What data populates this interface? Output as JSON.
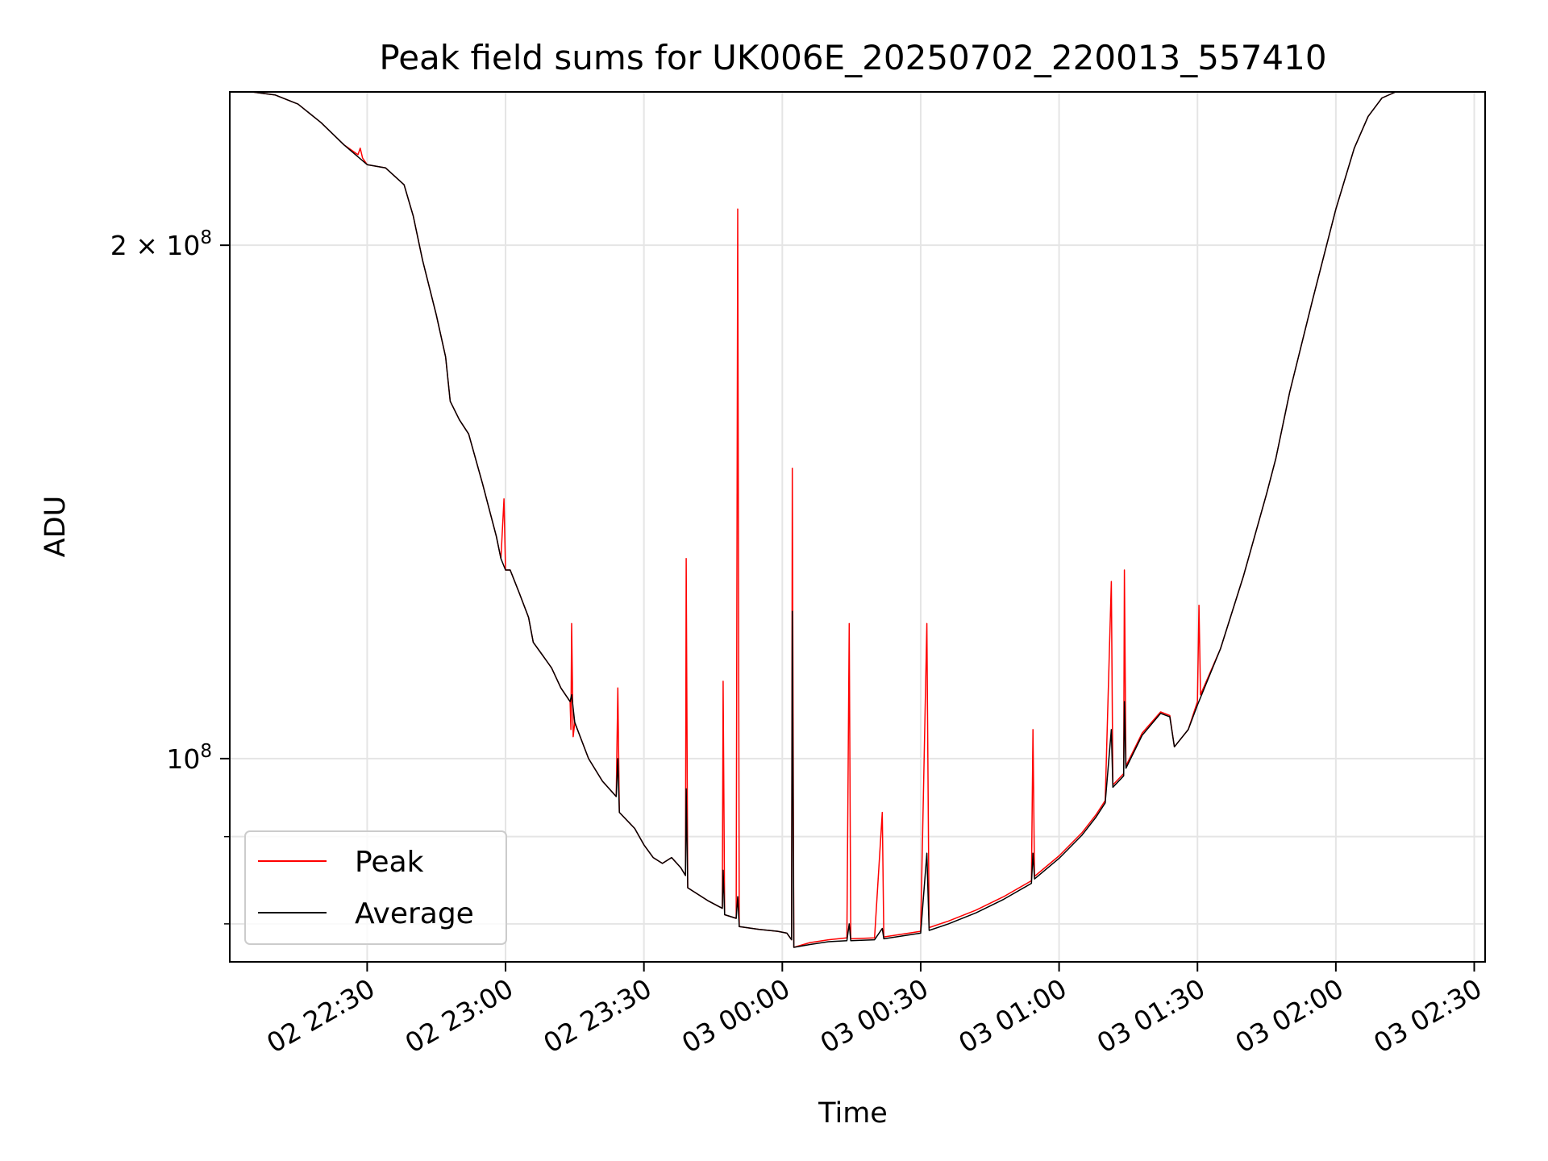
{
  "chart_data": {
    "type": "line",
    "title": "Peak field sums for UK006E_20250702_220013_557410",
    "xlabel": "Time",
    "ylabel": "ADU",
    "yscale": "log",
    "grid": true,
    "legend_position": "lower-left",
    "xlim": [
      "2025-07-02 22:00:13",
      "2025-07-03 02:30:00"
    ],
    "ylim": [
      76000000,
      246000000
    ],
    "x_ticks": [
      "02 22:30",
      "02 23:00",
      "02 23:30",
      "03 00:00",
      "03 00:30",
      "03 01:00",
      "03 01:30",
      "03 02:00",
      "03 02:30"
    ],
    "y_ticks_labeled": [
      {
        "value": 100000000,
        "label_base": "10",
        "label_exp": "8"
      },
      {
        "value": 200000000,
        "label_base": "2 × 10",
        "label_exp": "8"
      }
    ],
    "y_ticks_minor": [
      80000000,
      90000000
    ],
    "series": [
      {
        "name": "Peak",
        "color": "#ff0000",
        "points": [
          [
            "22:00:13",
            246000000
          ],
          [
            "22:05",
            246000000
          ],
          [
            "22:10",
            245000000
          ],
          [
            "22:15",
            242000000
          ],
          [
            "22:20",
            236000000
          ],
          [
            "22:25",
            229000000
          ],
          [
            "22:28",
            226000000
          ],
          [
            "22:28:30",
            228000000
          ],
          [
            "22:29",
            225000000
          ],
          [
            "22:30",
            223000000
          ],
          [
            "22:34",
            222000000
          ],
          [
            "22:38",
            217000000
          ],
          [
            "22:40",
            208000000
          ],
          [
            "22:42",
            196000000
          ],
          [
            "22:45",
            182000000
          ],
          [
            "22:47",
            172000000
          ],
          [
            "22:48",
            162000000
          ],
          [
            "22:50",
            158000000
          ],
          [
            "22:52",
            155000000
          ],
          [
            "22:55",
            145000000
          ],
          [
            "22:58",
            135000000
          ],
          [
            "22:59",
            131000000
          ],
          [
            "22:59:40",
            142000000
          ],
          [
            "23:00",
            129000000
          ],
          [
            "23:01",
            129000000
          ],
          [
            "23:03",
            125000000
          ],
          [
            "23:05",
            121000000
          ],
          [
            "23:06",
            117000000
          ],
          [
            "23:08",
            115000000
          ],
          [
            "23:09",
            114000000
          ],
          [
            "23:10",
            113000000
          ],
          [
            "23:12",
            110000000
          ],
          [
            "23:14",
            108000000
          ],
          [
            "23:15",
            105000000
          ],
          [
            "23:14:10",
            104000000
          ],
          [
            "23:14:20",
            120000000
          ],
          [
            "23:14:40",
            103000000
          ],
          [
            "23:18",
            100000000
          ],
          [
            "23:21",
            97000000
          ],
          [
            "23:24",
            95000000
          ],
          [
            "23:24:20",
            110000000
          ],
          [
            "23:24:40",
            93000000
          ],
          [
            "23:28",
            91000000
          ],
          [
            "23:30",
            89000000
          ],
          [
            "23:32",
            87500000
          ],
          [
            "23:34",
            86800000
          ],
          [
            "23:36",
            87500000
          ],
          [
            "23:38",
            86300000
          ],
          [
            "23:39",
            85400000
          ],
          [
            "23:39:10",
            131000000
          ],
          [
            "23:39:30",
            84000000
          ],
          [
            "23:44",
            82500000
          ],
          [
            "23:47",
            81700000
          ],
          [
            "23:47:10",
            111000000
          ],
          [
            "23:47:30",
            81000000
          ],
          [
            "23:50",
            80600000
          ],
          [
            "23:50:20",
            210000000
          ],
          [
            "23:50:40",
            79700000
          ],
          [
            "23:55",
            79400000
          ],
          [
            "23:59",
            79200000
          ],
          [
            "00:01",
            79000000
          ],
          [
            "00:02",
            78300000
          ],
          [
            "00:02:10",
            148000000
          ],
          [
            "00:02:30",
            77500000
          ],
          [
            "00:06",
            78000000
          ],
          [
            "00:10",
            78300000
          ],
          [
            "00:14",
            78500000
          ],
          [
            "00:14:30",
            120000000
          ],
          [
            "00:14:50",
            78400000
          ],
          [
            "00:20",
            78500000
          ],
          [
            "00:21:40",
            93000000
          ],
          [
            "00:22",
            78600000
          ],
          [
            "00:26",
            78900000
          ],
          [
            "00:30",
            79200000
          ],
          [
            "00:31:20",
            120000000
          ],
          [
            "00:31:50",
            79600000
          ],
          [
            "00:36",
            80300000
          ],
          [
            "00:42",
            81500000
          ],
          [
            "00:48",
            83000000
          ],
          [
            "00:54",
            84800000
          ],
          [
            "00:54:20",
            104000000
          ],
          [
            "00:54:40",
            85300000
          ],
          [
            "01:00",
            87700000
          ],
          [
            "01:05",
            90500000
          ],
          [
            "01:08",
            92700000
          ],
          [
            "01:10",
            94500000
          ],
          [
            "01:11:20",
            127000000
          ],
          [
            "01:11:40",
            96500000
          ],
          [
            "01:14",
            98000000
          ],
          [
            "01:14:10",
            129000000
          ],
          [
            "01:14:30",
            99000000
          ],
          [
            "01:18",
            103500000
          ],
          [
            "01:22",
            106500000
          ],
          [
            "01:24",
            106000000
          ],
          [
            "01:25",
            101600000
          ],
          [
            "01:28",
            104000000
          ],
          [
            "01:30",
            108000000
          ],
          [
            "01:30:20",
            123000000
          ],
          [
            "01:30:40",
            109000000
          ],
          [
            "01:35",
            116000000
          ],
          [
            "01:40",
            128000000
          ],
          [
            "01:45",
            143000000
          ],
          [
            "01:47",
            150000000
          ],
          [
            "01:50",
            164000000
          ],
          [
            "01:55",
            186000000
          ],
          [
            "02:00",
            210000000
          ],
          [
            "02:04",
            228000000
          ],
          [
            "02:07",
            238000000
          ],
          [
            "02:10",
            244000000
          ],
          [
            "02:13",
            246000000
          ],
          [
            "02:18",
            246000000
          ]
        ]
      },
      {
        "name": "Average",
        "color": "#000000",
        "points": [
          [
            "22:00:13",
            246000000
          ],
          [
            "22:05",
            246000000
          ],
          [
            "22:10",
            245000000
          ],
          [
            "22:15",
            242000000
          ],
          [
            "22:20",
            236000000
          ],
          [
            "22:25",
            229000000
          ],
          [
            "22:30",
            223000000
          ],
          [
            "22:34",
            222000000
          ],
          [
            "22:38",
            217000000
          ],
          [
            "22:40",
            208000000
          ],
          [
            "22:42",
            196000000
          ],
          [
            "22:45",
            182000000
          ],
          [
            "22:47",
            172000000
          ],
          [
            "22:48",
            162000000
          ],
          [
            "22:50",
            158000000
          ],
          [
            "22:52",
            155000000
          ],
          [
            "22:55",
            145000000
          ],
          [
            "22:58",
            135000000
          ],
          [
            "22:59",
            131000000
          ],
          [
            "23:00",
            129000000
          ],
          [
            "23:01",
            129000000
          ],
          [
            "23:03",
            125000000
          ],
          [
            "23:05",
            121000000
          ],
          [
            "23:06",
            117000000
          ],
          [
            "23:08",
            115000000
          ],
          [
            "23:09",
            114000000
          ],
          [
            "23:10",
            113000000
          ],
          [
            "23:12",
            110000000
          ],
          [
            "23:14",
            108000000
          ],
          [
            "23:14:20",
            109000000
          ],
          [
            "23:15",
            105000000
          ],
          [
            "23:18",
            100000000
          ],
          [
            "23:21",
            97000000
          ],
          [
            "23:24",
            95000000
          ],
          [
            "23:24:20",
            100000000
          ],
          [
            "23:24:40",
            93000000
          ],
          [
            "23:28",
            91000000
          ],
          [
            "23:30",
            89000000
          ],
          [
            "23:32",
            87500000
          ],
          [
            "23:34",
            86800000
          ],
          [
            "23:36",
            87500000
          ],
          [
            "23:38",
            86300000
          ],
          [
            "23:39",
            85400000
          ],
          [
            "23:39:10",
            96000000
          ],
          [
            "23:39:30",
            84000000
          ],
          [
            "23:44",
            82500000
          ],
          [
            "23:47",
            81700000
          ],
          [
            "23:47:10",
            86000000
          ],
          [
            "23:47:30",
            81000000
          ],
          [
            "23:50",
            80600000
          ],
          [
            "23:50:20",
            83000000
          ],
          [
            "23:50:40",
            79700000
          ],
          [
            "23:55",
            79400000
          ],
          [
            "23:59",
            79200000
          ],
          [
            "00:01",
            79000000
          ],
          [
            "00:02",
            78300000
          ],
          [
            "00:02:10",
            122000000
          ],
          [
            "00:02:30",
            77500000
          ],
          [
            "00:06",
            77800000
          ],
          [
            "00:10",
            78100000
          ],
          [
            "00:14",
            78200000
          ],
          [
            "00:14:30",
            80000000
          ],
          [
            "00:14:50",
            78200000
          ],
          [
            "00:20",
            78300000
          ],
          [
            "00:21:40",
            79500000
          ],
          [
            "00:22",
            78400000
          ],
          [
            "00:26",
            78700000
          ],
          [
            "00:30",
            79000000
          ],
          [
            "00:31:20",
            88000000
          ],
          [
            "00:31:50",
            79300000
          ],
          [
            "00:36",
            80000000
          ],
          [
            "00:42",
            81200000
          ],
          [
            "00:48",
            82700000
          ],
          [
            "00:54",
            84500000
          ],
          [
            "00:54:20",
            88000000
          ],
          [
            "00:54:40",
            85000000
          ],
          [
            "01:00",
            87400000
          ],
          [
            "01:05",
            90200000
          ],
          [
            "01:08",
            92400000
          ],
          [
            "01:10",
            94200000
          ],
          [
            "01:11:20",
            104000000
          ],
          [
            "01:11:40",
            96200000
          ],
          [
            "01:14",
            97700000
          ],
          [
            "01:14:10",
            108000000
          ],
          [
            "01:14:30",
            98700000
          ],
          [
            "01:18",
            103200000
          ],
          [
            "01:22",
            106300000
          ],
          [
            "01:24",
            105800000
          ],
          [
            "01:25",
            101600000
          ],
          [
            "01:28",
            104000000
          ],
          [
            "01:30",
            107500000
          ],
          [
            "01:35",
            116000000
          ],
          [
            "01:40",
            128000000
          ],
          [
            "01:45",
            143000000
          ],
          [
            "01:47",
            150000000
          ],
          [
            "01:50",
            164000000
          ],
          [
            "01:55",
            186000000
          ],
          [
            "02:00",
            210000000
          ],
          [
            "02:04",
            228000000
          ],
          [
            "02:07",
            238000000
          ],
          [
            "02:10",
            244000000
          ],
          [
            "02:13",
            246000000
          ],
          [
            "02:18",
            246000000
          ]
        ]
      }
    ]
  }
}
